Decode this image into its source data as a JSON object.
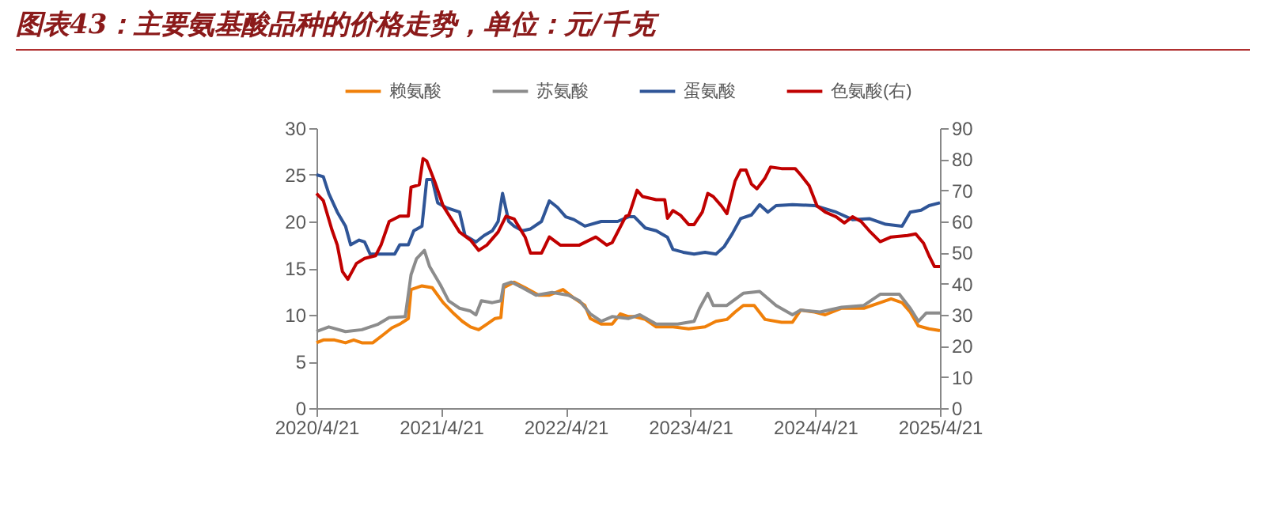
{
  "chart_data": {
    "type": "line",
    "title": "图表43：主要氨基酸品种的价格走势，单位：元/千克",
    "legend": "top",
    "grid": false,
    "marker": "none",
    "line_style": "solid",
    "xlim": [
      "2020-04-21",
      "2025-04-21"
    ],
    "xticks": [
      {
        "value": "2020-04-21",
        "label": "2020/4/21"
      },
      {
        "value": "2021-04-21",
        "label": "2021/4/21"
      },
      {
        "value": "2022-04-21",
        "label": "2022/4/21"
      },
      {
        "value": "2023-04-21",
        "label": "2023/4/21"
      },
      {
        "value": "2024-04-21",
        "label": "2024/4/21"
      },
      {
        "value": "2025-04-21",
        "label": "2025/4/21"
      }
    ],
    "ylim": [
      0,
      30
    ],
    "yticks": [
      0,
      5,
      10,
      15,
      20,
      25,
      30
    ],
    "y2lim": [
      0,
      90
    ],
    "y2ticks": [
      0,
      10,
      20,
      30,
      40,
      50,
      60,
      70,
      80,
      90
    ],
    "series": [
      {
        "name": "赖氨酸",
        "color": "#f0800a",
        "x": [
          "2020-04-21",
          "2020-05-11",
          "2020-06-13",
          "2020-07-15",
          "2020-08-08",
          "2020-09-01",
          "2020-10-03",
          "2020-11-04",
          "2020-11-28",
          "2020-12-21",
          "2021-01-15",
          "2021-01-23",
          "2021-02-24",
          "2021-03-26",
          "2021-04-27",
          "2021-05-29",
          "2021-06-22",
          "2021-07-16",
          "2021-08-09",
          "2021-09-02",
          "2021-09-26",
          "2021-10-13",
          "2021-10-21",
          "2021-11-21",
          "2021-12-23",
          "2022-02-01",
          "2022-03-04",
          "2022-04-13",
          "2022-05-15",
          "2022-06-16",
          "2022-07-02",
          "2022-08-03",
          "2022-09-04",
          "2022-09-28",
          "2022-10-22",
          "2022-11-08",
          "2022-12-10",
          "2023-01-11",
          "2023-03-01",
          "2023-04-16",
          "2023-06-03",
          "2023-07-05",
          "2023-08-06",
          "2023-08-30",
          "2023-09-23",
          "2023-10-25",
          "2023-11-26",
          "2024-01-13",
          "2024-02-14",
          "2024-03-09",
          "2024-04-19",
          "2024-05-20",
          "2024-07-07",
          "2024-09-10",
          "2024-10-28",
          "2024-11-29",
          "2024-12-31",
          "2025-01-24",
          "2025-02-17",
          "2025-03-20",
          "2025-04-21"
        ],
        "values": [
          7.0,
          7.3,
          7.3,
          7.0,
          7.3,
          7.0,
          7.0,
          7.9,
          8.6,
          9.0,
          9.6,
          12.7,
          13.1,
          12.9,
          11.3,
          10.1,
          9.3,
          8.7,
          8.4,
          9.0,
          9.6,
          9.7,
          12.9,
          13.5,
          12.9,
          12.1,
          12.1,
          12.7,
          11.8,
          11.0,
          9.6,
          9.0,
          9.0,
          10.1,
          9.8,
          9.8,
          9.5,
          8.7,
          8.7,
          8.5,
          8.7,
          9.3,
          9.5,
          10.3,
          11.0,
          11.0,
          9.5,
          9.2,
          9.2,
          10.5,
          10.3,
          10.0,
          10.7,
          10.7,
          11.3,
          11.7,
          11.3,
          10.3,
          8.8,
          8.5,
          8.3
        ]
      },
      {
        "name": "苏氨酸",
        "color": "#8c8c8c",
        "x": [
          "2020-04-21",
          "2020-05-27",
          "2020-07-15",
          "2020-09-01",
          "2020-10-19",
          "2020-11-20",
          "2021-01-06",
          "2021-01-23",
          "2021-02-08",
          "2021-03-03",
          "2021-03-18",
          "2021-04-19",
          "2021-05-13",
          "2021-06-14",
          "2021-07-16",
          "2021-08-01",
          "2021-08-17",
          "2021-09-18",
          "2021-10-13",
          "2021-10-21",
          "2021-11-13",
          "2021-12-15",
          "2022-01-24",
          "2022-03-12",
          "2022-04-29",
          "2022-05-31",
          "2022-07-02",
          "2022-08-03",
          "2022-09-04",
          "2022-10-22",
          "2022-11-24",
          "2023-01-11",
          "2023-03-15",
          "2023-05-02",
          "2023-05-18",
          "2023-06-11",
          "2023-06-27",
          "2023-08-06",
          "2023-09-23",
          "2023-11-10",
          "2023-12-28",
          "2024-02-14",
          "2024-03-09",
          "2024-05-05",
          "2024-07-07",
          "2024-09-10",
          "2024-10-28",
          "2024-12-23",
          "2025-01-24",
          "2025-02-17",
          "2025-03-12",
          "2025-04-21"
        ],
        "values": [
          8.2,
          8.7,
          8.2,
          8.4,
          9.0,
          9.7,
          9.8,
          14.3,
          16.0,
          16.9,
          15.2,
          13.2,
          11.5,
          10.7,
          10.4,
          10.0,
          11.5,
          11.3,
          11.5,
          13.2,
          13.5,
          12.9,
          12.1,
          12.4,
          12.1,
          11.5,
          10.1,
          9.3,
          9.8,
          9.6,
          10.0,
          9.0,
          9.0,
          9.3,
          10.7,
          12.3,
          11.0,
          11.0,
          12.3,
          12.5,
          11.0,
          10.0,
          10.5,
          10.3,
          10.8,
          11.0,
          12.2,
          12.2,
          10.7,
          9.3,
          10.2,
          10.2
        ]
      },
      {
        "name": "蛋氨酸",
        "color": "#2f5597",
        "x": [
          "2020-04-21",
          "2020-05-11",
          "2020-05-27",
          "2020-06-21",
          "2020-07-15",
          "2020-07-30",
          "2020-08-24",
          "2020-09-09",
          "2020-09-25",
          "2020-11-04",
          "2020-12-06",
          "2020-12-21",
          "2021-01-15",
          "2021-01-31",
          "2021-02-24",
          "2021-03-10",
          "2021-03-26",
          "2021-04-11",
          "2021-05-05",
          "2021-06-14",
          "2021-06-30",
          "2021-08-01",
          "2021-08-25",
          "2021-09-18",
          "2021-10-05",
          "2021-10-18",
          "2021-11-05",
          "2021-11-21",
          "2021-12-15",
          "2022-01-08",
          "2022-02-09",
          "2022-03-04",
          "2022-03-28",
          "2022-04-21",
          "2022-05-15",
          "2022-06-16",
          "2022-08-03",
          "2022-09-20",
          "2022-10-22",
          "2022-11-08",
          "2022-12-10",
          "2023-01-11",
          "2023-02-13",
          "2023-03-01",
          "2023-03-31",
          "2023-05-02",
          "2023-06-03",
          "2023-07-05",
          "2023-07-29",
          "2023-08-22",
          "2023-09-15",
          "2023-10-17",
          "2023-11-10",
          "2023-12-04",
          "2023-12-28",
          "2024-02-14",
          "2024-04-19",
          "2024-06-21",
          "2024-08-08",
          "2024-09-26",
          "2024-11-13",
          "2024-12-31",
          "2025-01-24",
          "2025-02-25",
          "2025-03-20",
          "2025-04-21"
        ],
        "values": [
          25.0,
          24.8,
          23.0,
          21.0,
          19.5,
          17.5,
          18.0,
          17.8,
          16.5,
          16.5,
          16.5,
          17.5,
          17.5,
          19.0,
          19.5,
          24.5,
          24.5,
          22.0,
          21.5,
          21.0,
          18.5,
          17.8,
          18.5,
          19.0,
          20.0,
          23.0,
          20.0,
          19.5,
          19.0,
          19.2,
          20.0,
          22.2,
          21.5,
          20.5,
          20.2,
          19.5,
          20.0,
          20.0,
          20.5,
          20.5,
          19.3,
          19.0,
          18.3,
          17.0,
          16.7,
          16.5,
          16.7,
          16.5,
          17.3,
          18.7,
          20.3,
          20.7,
          21.8,
          21.0,
          21.7,
          21.8,
          21.7,
          21.0,
          20.2,
          20.3,
          19.7,
          19.5,
          21.0,
          21.2,
          21.7,
          22.0
        ]
      },
      {
        "name": "色氨酸(右)",
        "color": "#c00000",
        "axis": "y2",
        "x": [
          "2020-04-21",
          "2020-05-11",
          "2020-06-05",
          "2020-06-21",
          "2020-07-06",
          "2020-07-22",
          "2020-08-16",
          "2020-09-09",
          "2020-10-11",
          "2020-10-27",
          "2020-11-20",
          "2020-12-21",
          "2021-01-15",
          "2021-01-23",
          "2021-02-16",
          "2021-02-27",
          "2021-03-10",
          "2021-04-03",
          "2021-04-27",
          "2021-05-21",
          "2021-06-14",
          "2021-07-16",
          "2021-08-09",
          "2021-09-02",
          "2021-10-05",
          "2021-10-28",
          "2021-11-21",
          "2021-12-23",
          "2022-01-08",
          "2022-02-09",
          "2022-03-04",
          "2022-04-05",
          "2022-05-31",
          "2022-07-18",
          "2022-08-19",
          "2022-09-04",
          "2022-10-14",
          "2022-10-23",
          "2022-11-16",
          "2022-12-02",
          "2023-01-11",
          "2023-02-05",
          "2023-02-13",
          "2023-03-01",
          "2023-03-23",
          "2023-04-16",
          "2023-05-02",
          "2023-05-26",
          "2023-06-11",
          "2023-06-27",
          "2023-07-21",
          "2023-08-06",
          "2023-08-30",
          "2023-09-15",
          "2023-10-01",
          "2023-10-17",
          "2023-11-02",
          "2023-11-26",
          "2023-12-12",
          "2024-01-13",
          "2024-02-22",
          "2024-03-09",
          "2024-04-03",
          "2024-04-26",
          "2024-05-20",
          "2024-06-21",
          "2024-07-15",
          "2024-08-08",
          "2024-09-02",
          "2024-09-26",
          "2024-10-28",
          "2024-11-29",
          "2025-01-16",
          "2025-02-09",
          "2025-03-04",
          "2025-03-20",
          "2025-04-05",
          "2025-04-21"
        ],
        "values": [
          69,
          66.7,
          57.4,
          52.4,
          43.9,
          41.4,
          46.5,
          48.1,
          49,
          52.4,
          60,
          61.7,
          61.7,
          71,
          71.8,
          80.2,
          79.4,
          72.6,
          65,
          60.8,
          56.6,
          54,
          50.7,
          52.4,
          56.6,
          61.7,
          60.8,
          55,
          49.8,
          49.8,
          55,
          52.4,
          52.4,
          55,
          52.4,
          53.2,
          61.7,
          62,
          70,
          68,
          67,
          67,
          61,
          63.5,
          62,
          59,
          59,
          63,
          69,
          68,
          65,
          62.5,
          73,
          76.5,
          76.5,
          72,
          70.5,
          74,
          77.5,
          77,
          77,
          75,
          71.5,
          65,
          63,
          61.5,
          59.5,
          61.5,
          60,
          57,
          53.5,
          55,
          55.5,
          56,
          53,
          49,
          45.5,
          45.5
        ]
      }
    ]
  }
}
